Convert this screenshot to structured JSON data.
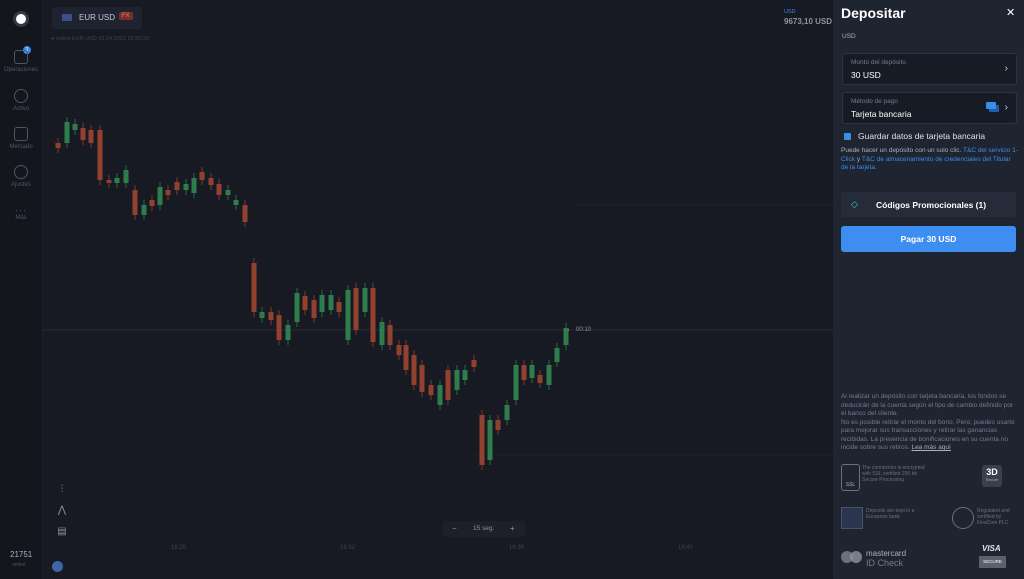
{
  "header": {
    "asset": "EUR USD",
    "asset_tag": "FX",
    "status": "● online EUR USD 13.04.2021 16:30:20"
  },
  "sidebar": {
    "badge": "1",
    "items": [
      "Operaciones",
      "Activo",
      "Mercado",
      "Ajustes",
      "Más"
    ],
    "user_id": "21751",
    "user_status": "online"
  },
  "balance": {
    "currency": "USD",
    "amount": "9673,10 USD"
  },
  "chart": {
    "timer": "00:10",
    "time_labels": [
      "16:28",
      "16:32",
      "16:36",
      "16:40"
    ],
    "zoom": {
      "minus": "−",
      "value": "15 seg.",
      "plus": "+"
    }
  },
  "panel": {
    "title": "Depositar",
    "close": "✕",
    "currency": "USD",
    "amount_field": {
      "label": "Monto del depósito",
      "value": "30 USD"
    },
    "method_field": {
      "label": "Método de pago",
      "value": "Tarjeta bancaria"
    },
    "save_checkbox": "Guardar datos de tarjeta bancaria",
    "info": {
      "text": "Puede hacer un depósito con un solo clic.",
      "link1": "T&C del servicio 1-Click",
      "joiner": "y",
      "link2": "T&C de almacenamiento de credenciales del Titular de la tarjeta."
    },
    "promo": "Códigos Promocionales (1)",
    "pay_button": "Pagar 30 USD",
    "disclaimer": [
      "Al realizar un depósito con tarjeta bancaria, los fondos se deducirán de la cuenta según el tipo de cambio definido por el banco del cliente.",
      "No es posible retirar el monto del bono. Pero, puedes usarlo para mejorar sus transacciones y retirar las ganancias recibidas. La presencia de bonificaciones en su cuenta no incide sobre sus retiros."
    ],
    "read_more": "Lea más aquí",
    "badges": {
      "ssl_text": "The connection is encrypted with SSL certified 256 bit Secure Processing",
      "ssl_icon": "SSL",
      "secure3d": "3D",
      "secure3d_sub": "Secure",
      "eu_text": "Deposits are kept in a European bank",
      "reg_text": "Regulated and certified by FinaCom PLC",
      "mastercard": "mastercard",
      "id_check": "ID Check",
      "visa": "VISA",
      "visa_sub": "SECURE"
    }
  }
}
